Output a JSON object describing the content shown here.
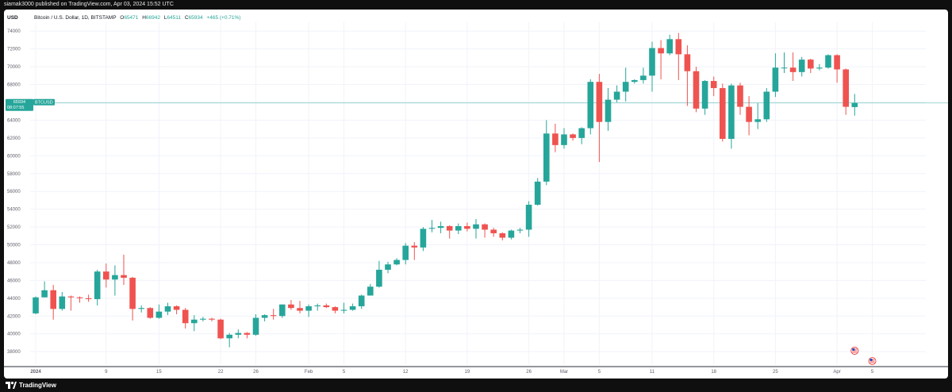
{
  "header": {
    "published_by": "siamak3000 published on TradingView.com, Apr 03, 2024 15:52 UTC"
  },
  "footer": {
    "brand": "TradingView"
  },
  "colors": {
    "up": "#26a69a",
    "down": "#ef5350",
    "grid": "#f0f3fa",
    "text": "#131722",
    "axis_text": "#5d606b",
    "price_line": "#26a69a"
  },
  "chart_data": {
    "type": "candlestick",
    "symbol_title": "Bitcoin / U.S. Dollar, 1D, BITSTAMP",
    "ohlc_label": {
      "o_key": "O",
      "o": "65471",
      "h_key": "H",
      "h": "66942",
      "l_key": "L",
      "l": "64511",
      "c_key": "C",
      "c": "65934",
      "change": "+465 (+0.71%)"
    },
    "currency": "USD",
    "price_label": {
      "symbol": "BTCUSD",
      "price": "65934",
      "countdown": "08:07:55"
    },
    "ylim": [
      36500,
      75000
    ],
    "y_ticks": [
      74000,
      72000,
      70000,
      68000,
      66000,
      64000,
      62000,
      60000,
      58000,
      56000,
      54000,
      52000,
      50000,
      48000,
      46000,
      44000,
      42000,
      40000,
      38000
    ],
    "x_ticks": [
      {
        "label": "2024",
        "index": 0
      },
      {
        "label": "9",
        "index": 8
      },
      {
        "label": "15",
        "index": 14
      },
      {
        "label": "22",
        "index": 21
      },
      {
        "label": "26",
        "index": 25
      },
      {
        "label": "Feb",
        "index": 31
      },
      {
        "label": "5",
        "index": 35
      },
      {
        "label": "12",
        "index": 42
      },
      {
        "label": "19",
        "index": 49
      },
      {
        "label": "26",
        "index": 56
      },
      {
        "label": "Mar",
        "index": 60
      },
      {
        "label": "5",
        "index": 64
      },
      {
        "label": "11",
        "index": 70
      },
      {
        "label": "18",
        "index": 77
      },
      {
        "label": "25",
        "index": 84
      },
      {
        "label": "Apr",
        "index": 91
      },
      {
        "label": "5",
        "index": 95
      }
    ],
    "candles": [
      {
        "date": "2024-01-01",
        "o": 42300,
        "h": 44200,
        "l": 42200,
        "c": 44100
      },
      {
        "date": "2024-01-02",
        "o": 44100,
        "h": 45900,
        "l": 44100,
        "c": 44900
      },
      {
        "date": "2024-01-03",
        "o": 44900,
        "h": 45500,
        "l": 41600,
        "c": 42800
      },
      {
        "date": "2024-01-04",
        "o": 42800,
        "h": 44700,
        "l": 42600,
        "c": 44200
      },
      {
        "date": "2024-01-05",
        "o": 44200,
        "h": 44300,
        "l": 42600,
        "c": 44100
      },
      {
        "date": "2024-01-06",
        "o": 44100,
        "h": 44200,
        "l": 43500,
        "c": 44000
      },
      {
        "date": "2024-01-07",
        "o": 44000,
        "h": 44400,
        "l": 43600,
        "c": 43900
      },
      {
        "date": "2024-01-08",
        "o": 43900,
        "h": 47200,
        "l": 43200,
        "c": 47000
      },
      {
        "date": "2024-01-09",
        "o": 47000,
        "h": 47900,
        "l": 45200,
        "c": 46100
      },
      {
        "date": "2024-01-10",
        "o": 46100,
        "h": 47700,
        "l": 44300,
        "c": 46600
      },
      {
        "date": "2024-01-11",
        "o": 46600,
        "h": 48900,
        "l": 45500,
        "c": 46300
      },
      {
        "date": "2024-01-12",
        "o": 46300,
        "h": 46400,
        "l": 41500,
        "c": 42800
      },
      {
        "date": "2024-01-13",
        "o": 42800,
        "h": 43200,
        "l": 42400,
        "c": 42900
      },
      {
        "date": "2024-01-14",
        "o": 42900,
        "h": 43000,
        "l": 41700,
        "c": 41800
      },
      {
        "date": "2024-01-15",
        "o": 41800,
        "h": 43300,
        "l": 41700,
        "c": 42500
      },
      {
        "date": "2024-01-16",
        "o": 42500,
        "h": 43500,
        "l": 42100,
        "c": 43100
      },
      {
        "date": "2024-01-17",
        "o": 43100,
        "h": 43200,
        "l": 42200,
        "c": 42700
      },
      {
        "date": "2024-01-18",
        "o": 42700,
        "h": 42900,
        "l": 40600,
        "c": 41200
      },
      {
        "date": "2024-01-19",
        "o": 41200,
        "h": 42100,
        "l": 40300,
        "c": 41600
      },
      {
        "date": "2024-01-20",
        "o": 41600,
        "h": 41900,
        "l": 41400,
        "c": 41700
      },
      {
        "date": "2024-01-21",
        "o": 41700,
        "h": 41800,
        "l": 41400,
        "c": 41600
      },
      {
        "date": "2024-01-22",
        "o": 41600,
        "h": 41700,
        "l": 39400,
        "c": 39500
      },
      {
        "date": "2024-01-23",
        "o": 39500,
        "h": 40100,
        "l": 38500,
        "c": 39900
      },
      {
        "date": "2024-01-24",
        "o": 39900,
        "h": 40500,
        "l": 39500,
        "c": 40100
      },
      {
        "date": "2024-01-25",
        "o": 40100,
        "h": 40200,
        "l": 39500,
        "c": 39900
      },
      {
        "date": "2024-01-26",
        "o": 39900,
        "h": 42200,
        "l": 39800,
        "c": 41800
      },
      {
        "date": "2024-01-27",
        "o": 41800,
        "h": 42200,
        "l": 41400,
        "c": 42100
      },
      {
        "date": "2024-01-28",
        "o": 42100,
        "h": 42800,
        "l": 41600,
        "c": 42000
      },
      {
        "date": "2024-01-29",
        "o": 42000,
        "h": 43300,
        "l": 41800,
        "c": 43300
      },
      {
        "date": "2024-01-30",
        "o": 43300,
        "h": 43800,
        "l": 42700,
        "c": 42900
      },
      {
        "date": "2024-01-31",
        "o": 42900,
        "h": 43700,
        "l": 42300,
        "c": 42600
      },
      {
        "date": "2024-02-01",
        "o": 42600,
        "h": 43300,
        "l": 41900,
        "c": 43100
      },
      {
        "date": "2024-02-02",
        "o": 43100,
        "h": 43400,
        "l": 42600,
        "c": 43200
      },
      {
        "date": "2024-02-03",
        "o": 43200,
        "h": 43400,
        "l": 42900,
        "c": 43000
      },
      {
        "date": "2024-02-04",
        "o": 43000,
        "h": 43100,
        "l": 42300,
        "c": 42600
      },
      {
        "date": "2024-02-05",
        "o": 42600,
        "h": 43500,
        "l": 42300,
        "c": 42700
      },
      {
        "date": "2024-02-06",
        "o": 42700,
        "h": 43400,
        "l": 42600,
        "c": 43100
      },
      {
        "date": "2024-02-07",
        "o": 43100,
        "h": 44400,
        "l": 42800,
        "c": 44300
      },
      {
        "date": "2024-02-08",
        "o": 44300,
        "h": 45600,
        "l": 44300,
        "c": 45300
      },
      {
        "date": "2024-02-09",
        "o": 45300,
        "h": 48200,
        "l": 45200,
        "c": 47200
      },
      {
        "date": "2024-02-10",
        "o": 47200,
        "h": 48100,
        "l": 46800,
        "c": 47800
      },
      {
        "date": "2024-02-11",
        "o": 47800,
        "h": 48500,
        "l": 47700,
        "c": 48300
      },
      {
        "date": "2024-02-12",
        "o": 48300,
        "h": 50200,
        "l": 47800,
        "c": 49900
      },
      {
        "date": "2024-02-13",
        "o": 49900,
        "h": 50300,
        "l": 48300,
        "c": 49700
      },
      {
        "date": "2024-02-14",
        "o": 49700,
        "h": 52000,
        "l": 49300,
        "c": 51800
      },
      {
        "date": "2024-02-15",
        "o": 51800,
        "h": 52800,
        "l": 51400,
        "c": 51900
      },
      {
        "date": "2024-02-16",
        "o": 51900,
        "h": 52600,
        "l": 51300,
        "c": 52100
      },
      {
        "date": "2024-02-17",
        "o": 52100,
        "h": 52200,
        "l": 50700,
        "c": 51600
      },
      {
        "date": "2024-02-18",
        "o": 51600,
        "h": 52400,
        "l": 51200,
        "c": 52100
      },
      {
        "date": "2024-02-19",
        "o": 52100,
        "h": 52500,
        "l": 51500,
        "c": 51800
      },
      {
        "date": "2024-02-20",
        "o": 51800,
        "h": 52900,
        "l": 50700,
        "c": 52300
      },
      {
        "date": "2024-02-21",
        "o": 52300,
        "h": 52400,
        "l": 50800,
        "c": 51700
      },
      {
        "date": "2024-02-22",
        "o": 51700,
        "h": 51900,
        "l": 50900,
        "c": 51300
      },
      {
        "date": "2024-02-23",
        "o": 51300,
        "h": 51400,
        "l": 50500,
        "c": 50800
      },
      {
        "date": "2024-02-24",
        "o": 50800,
        "h": 51700,
        "l": 50600,
        "c": 51600
      },
      {
        "date": "2024-02-25",
        "o": 51600,
        "h": 51900,
        "l": 51300,
        "c": 51700
      },
      {
        "date": "2024-02-26",
        "o": 51700,
        "h": 54900,
        "l": 50900,
        "c": 54500
      },
      {
        "date": "2024-02-27",
        "o": 54500,
        "h": 57500,
        "l": 54400,
        "c": 57100
      },
      {
        "date": "2024-02-28",
        "o": 57100,
        "h": 64000,
        "l": 56700,
        "c": 62500
      },
      {
        "date": "2024-02-29",
        "o": 62500,
        "h": 63600,
        "l": 60400,
        "c": 61200
      },
      {
        "date": "2024-03-01",
        "o": 61200,
        "h": 63100,
        "l": 60800,
        "c": 62400
      },
      {
        "date": "2024-03-02",
        "o": 62400,
        "h": 62500,
        "l": 61700,
        "c": 62000
      },
      {
        "date": "2024-03-03",
        "o": 62000,
        "h": 63200,
        "l": 61300,
        "c": 63100
      },
      {
        "date": "2024-03-04",
        "o": 63100,
        "h": 68600,
        "l": 62400,
        "c": 68300
      },
      {
        "date": "2024-03-05",
        "o": 68300,
        "h": 69200,
        "l": 59300,
        "c": 63800
      },
      {
        "date": "2024-03-06",
        "o": 63800,
        "h": 67600,
        "l": 62800,
        "c": 66300
      },
      {
        "date": "2024-03-07",
        "o": 66300,
        "h": 67900,
        "l": 66000,
        "c": 67200
      },
      {
        "date": "2024-03-08",
        "o": 67200,
        "h": 69900,
        "l": 66100,
        "c": 68300
      },
      {
        "date": "2024-03-09",
        "o": 68300,
        "h": 68600,
        "l": 68100,
        "c": 68500
      },
      {
        "date": "2024-03-10",
        "o": 68500,
        "h": 69900,
        "l": 68100,
        "c": 69000
      },
      {
        "date": "2024-03-11",
        "o": 69000,
        "h": 72800,
        "l": 67200,
        "c": 72100
      },
      {
        "date": "2024-03-12",
        "o": 72100,
        "h": 73000,
        "l": 68600,
        "c": 71500
      },
      {
        "date": "2024-03-13",
        "o": 71500,
        "h": 73600,
        "l": 71300,
        "c": 73100
      },
      {
        "date": "2024-03-14",
        "o": 73100,
        "h": 73800,
        "l": 68500,
        "c": 71400
      },
      {
        "date": "2024-03-15",
        "o": 71400,
        "h": 72400,
        "l": 65600,
        "c": 69500
      },
      {
        "date": "2024-03-16",
        "o": 69500,
        "h": 70000,
        "l": 64900,
        "c": 65300
      },
      {
        "date": "2024-03-17",
        "o": 65300,
        "h": 68500,
        "l": 64600,
        "c": 68400
      },
      {
        "date": "2024-03-18",
        "o": 68400,
        "h": 68900,
        "l": 66700,
        "c": 67600
      },
      {
        "date": "2024-03-19",
        "o": 67600,
        "h": 68100,
        "l": 61600,
        "c": 61900
      },
      {
        "date": "2024-03-20",
        "o": 61900,
        "h": 68100,
        "l": 60800,
        "c": 67900
      },
      {
        "date": "2024-03-21",
        "o": 67900,
        "h": 68200,
        "l": 64600,
        "c": 65500
      },
      {
        "date": "2024-03-22",
        "o": 65500,
        "h": 66700,
        "l": 62300,
        "c": 63800
      },
      {
        "date": "2024-03-23",
        "o": 63800,
        "h": 65900,
        "l": 63000,
        "c": 64100
      },
      {
        "date": "2024-03-24",
        "o": 64100,
        "h": 67600,
        "l": 63800,
        "c": 67200
      },
      {
        "date": "2024-03-25",
        "o": 67200,
        "h": 71500,
        "l": 66600,
        "c": 69900
      },
      {
        "date": "2024-03-26",
        "o": 69900,
        "h": 71600,
        "l": 69300,
        "c": 69900
      },
      {
        "date": "2024-03-27",
        "o": 69900,
        "h": 71600,
        "l": 68400,
        "c": 69400
      },
      {
        "date": "2024-03-28",
        "o": 69400,
        "h": 71100,
        "l": 68900,
        "c": 70800
      },
      {
        "date": "2024-03-29",
        "o": 70800,
        "h": 70900,
        "l": 69300,
        "c": 69800
      },
      {
        "date": "2024-03-30",
        "o": 69800,
        "h": 70300,
        "l": 69600,
        "c": 69900
      },
      {
        "date": "2024-03-31",
        "o": 69900,
        "h": 71400,
        "l": 69800,
        "c": 71300
      },
      {
        "date": "2024-04-01",
        "o": 71300,
        "h": 71400,
        "l": 68200,
        "c": 69700
      },
      {
        "date": "2024-04-02",
        "o": 69700,
        "h": 69800,
        "l": 64600,
        "c": 65500
      },
      {
        "date": "2024-04-03",
        "o": 65471,
        "h": 66942,
        "l": 64511,
        "c": 65934
      }
    ],
    "events": [
      {
        "index": 93,
        "icon": "lightning-event-icon"
      },
      {
        "index": 93,
        "icon": "us-flag-event-icon"
      },
      {
        "index": 95,
        "icon": "us-flag-event-icon"
      }
    ]
  }
}
